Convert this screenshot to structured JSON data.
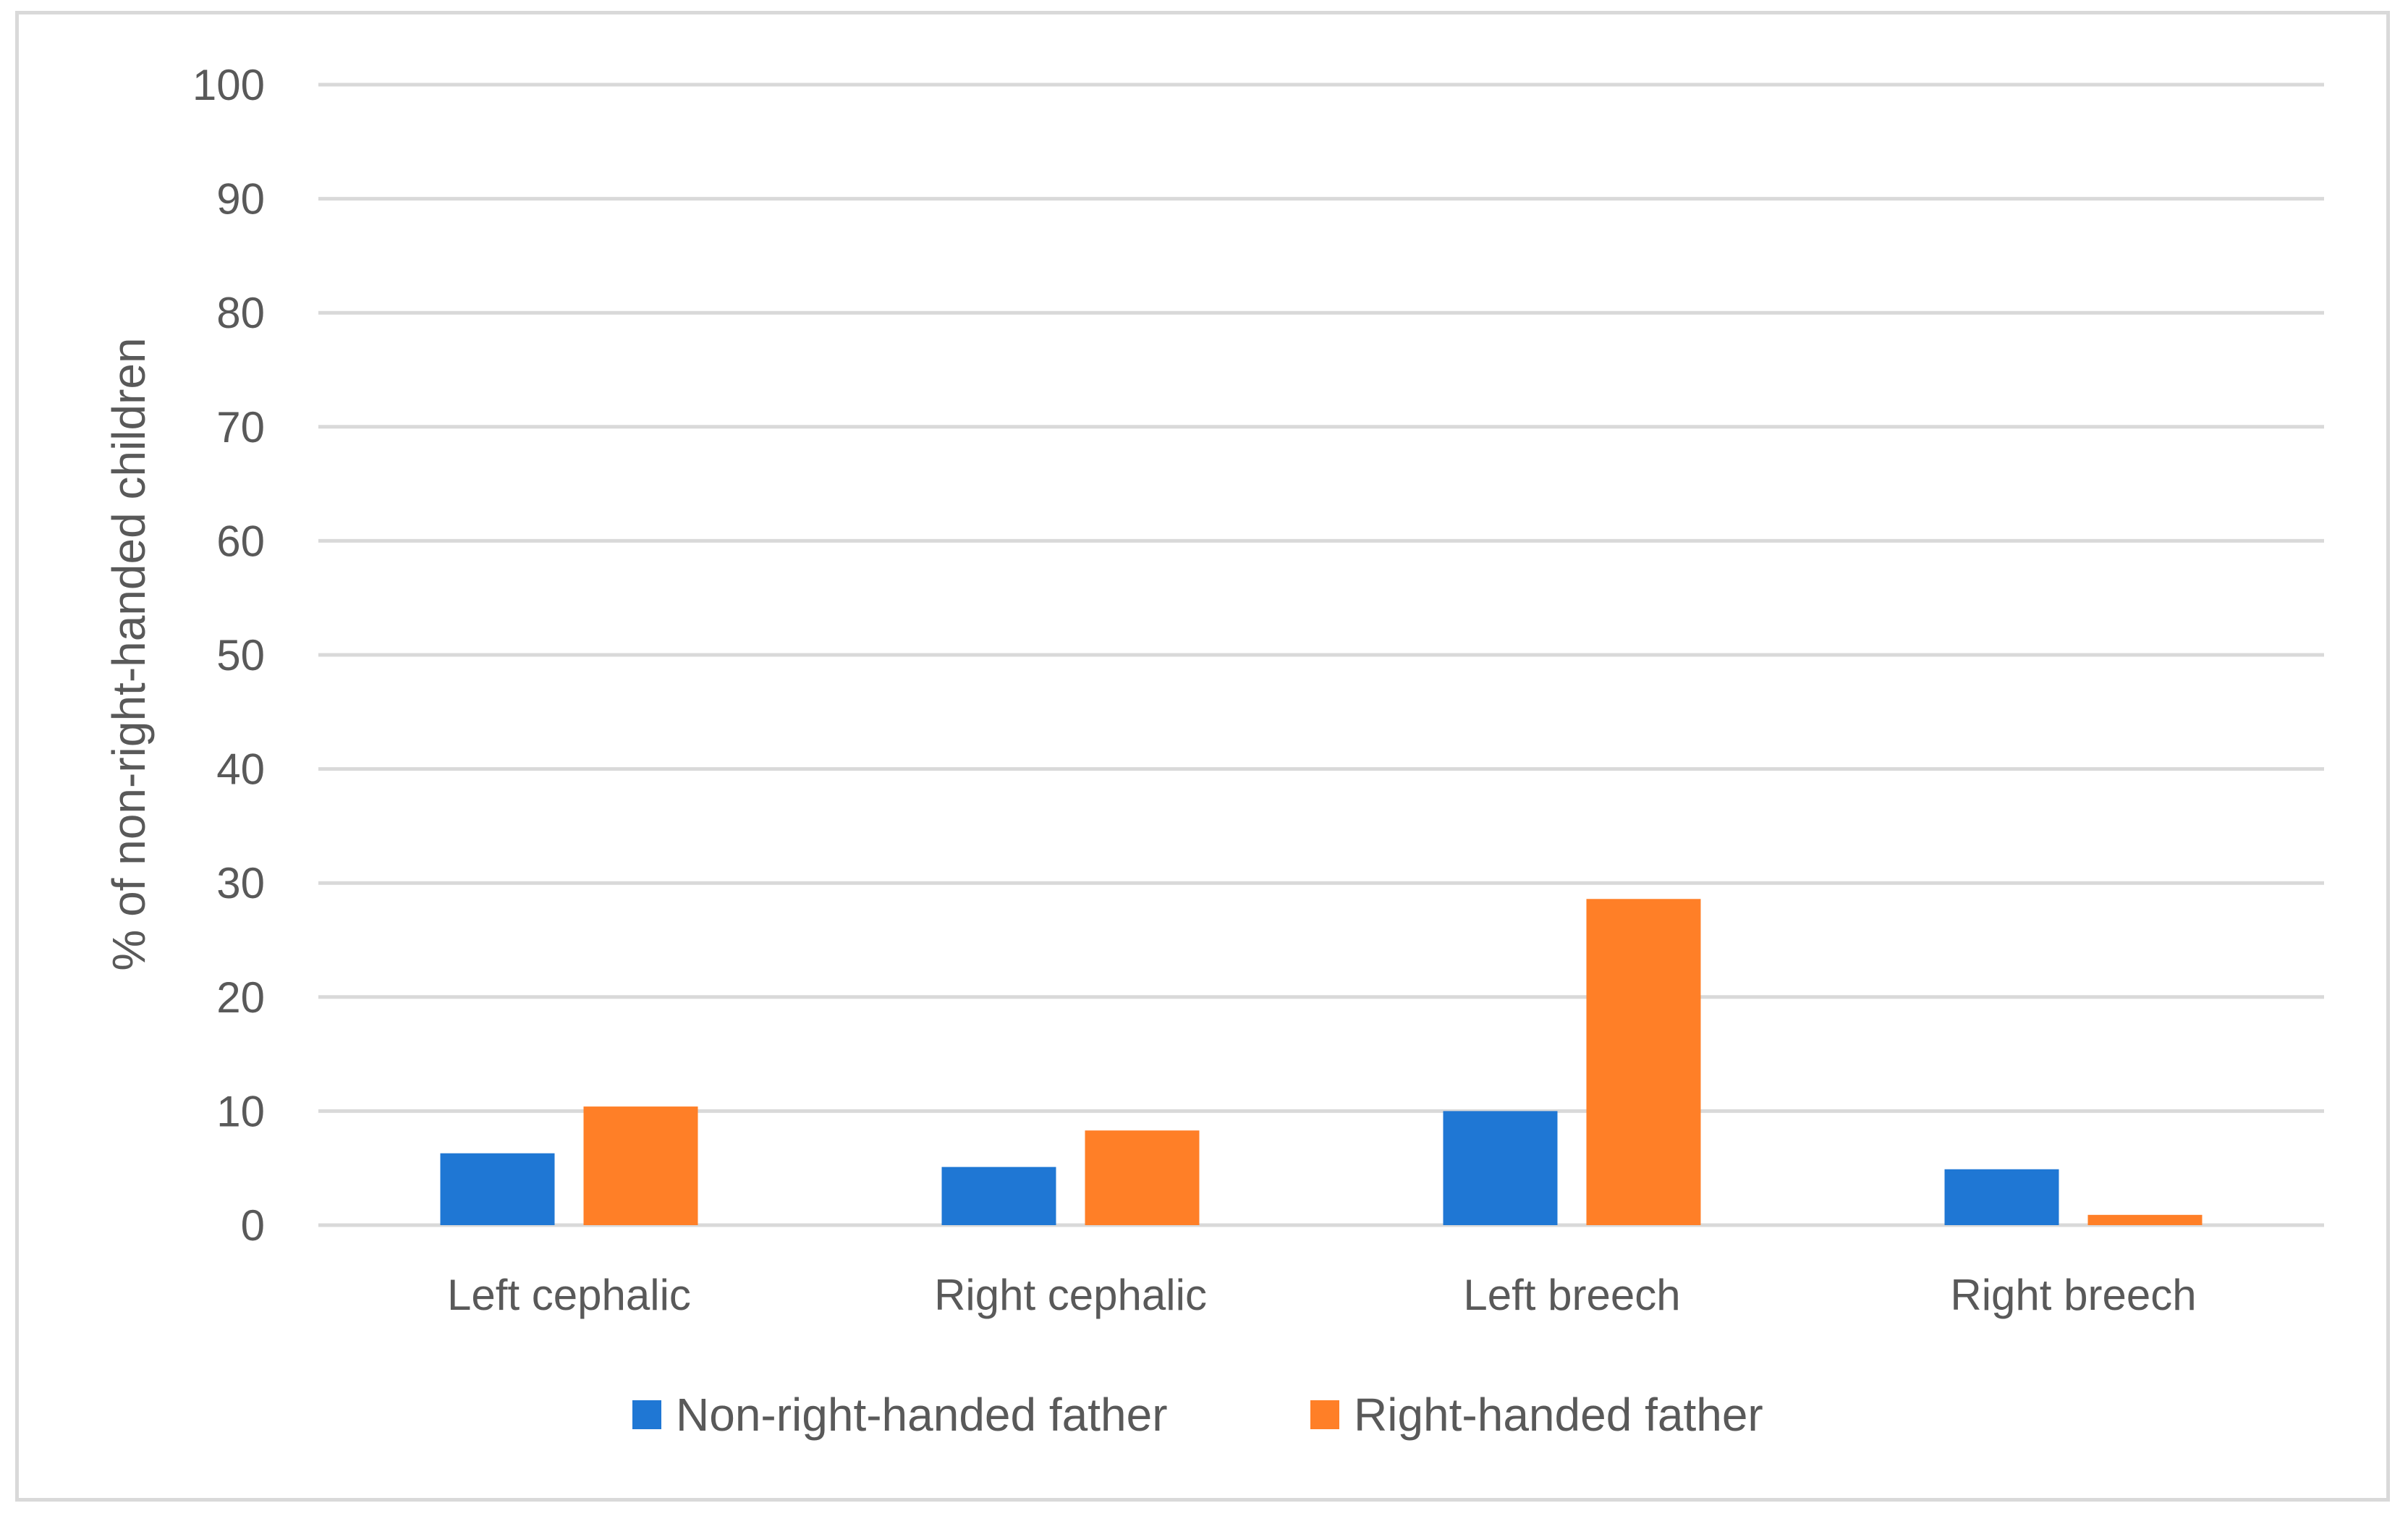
{
  "chart_data": {
    "type": "bar",
    "title": "",
    "xlabel": "",
    "ylabel": "% of non-right-handed children",
    "ylim": [
      0,
      100
    ],
    "yticks": [
      0,
      10,
      20,
      30,
      40,
      50,
      60,
      70,
      80,
      90,
      100
    ],
    "categories": [
      "Left cephalic",
      "Right cephalic",
      "Left breech",
      "Right breech"
    ],
    "series": [
      {
        "name": "Non-right-handed father",
        "color": "#1f77d4",
        "values": [
          6.3,
          5.1,
          10.0,
          4.9
        ]
      },
      {
        "name": "Right-handed father",
        "color": "#ff7f27",
        "values": [
          10.4,
          8.3,
          28.6,
          0.9
        ]
      }
    ],
    "grid": true,
    "legend_position": "bottom"
  },
  "colors": {
    "grid": "#d9d9d9",
    "text": "#595959",
    "frame": "#d9d9d9"
  }
}
